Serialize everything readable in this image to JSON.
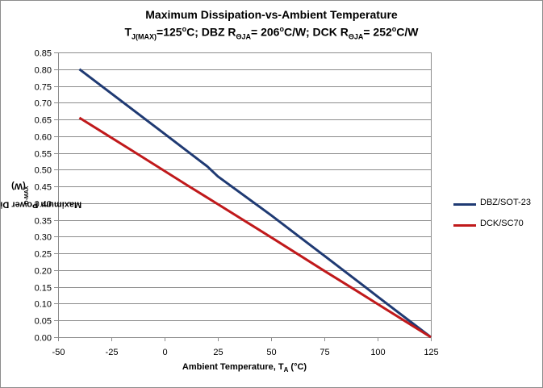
{
  "title_line1": "Maximum Dissipation-vs-Ambient Temperature",
  "title_line2": {
    "t_label": "T",
    "t_sub": "J(MAX)",
    "t_value": "=125",
    "deg1": "o",
    "part1": "C; DBZ R",
    "r_sub1": "ΘJA",
    "part2": "= 206",
    "deg2": "o",
    "part3": "C/W; DCK R",
    "r_sub2": "ΘJA",
    "part4": "= 252",
    "deg3": "o",
    "part5": "C/W"
  },
  "x_axis_label": {
    "main": "Ambient Temperature, T",
    "sub": "A",
    "unit": " (°C)"
  },
  "y_axis_label": {
    "main": "Maximum Power Disipation, P",
    "sub": "D-MAX",
    "unit": " (W)"
  },
  "colors": {
    "dbz": "#1f3a73",
    "dck": "#c0191b",
    "grid": "#8c8c8c",
    "axis": "#8c8c8c"
  },
  "chart_data": {
    "type": "line",
    "title": "Maximum Dissipation-vs-Ambient Temperature",
    "xlabel": "Ambient Temperature, TA (°C)",
    "ylabel": "Maximum Power Disipation, PD-MAX (W)",
    "xlim": [
      -50,
      125
    ],
    "ylim": [
      0,
      0.85
    ],
    "x_ticks": [
      "-50",
      "-25",
      "0",
      "25",
      "50",
      "75",
      "100",
      "125"
    ],
    "y_ticks": [
      "0.00",
      "0.05",
      "0.10",
      "0.15",
      "0.20",
      "0.25",
      "0.30",
      "0.35",
      "0.40",
      "0.45",
      "0.50",
      "0.55",
      "0.60",
      "0.65",
      "0.70",
      "0.75",
      "0.80",
      "0.85"
    ],
    "grid": "horizontal",
    "legend_position": "right",
    "series": [
      {
        "name": "DBZ/SOT-23",
        "color": "#1f3a73",
        "x": [
          -40,
          0,
          20,
          25,
          50,
          75,
          95,
          100,
          125
        ],
        "y": [
          0.8,
          0.607,
          0.51,
          0.48,
          0.364,
          0.243,
          0.146,
          0.121,
          0.0
        ]
      },
      {
        "name": "DCK/SC70",
        "color": "#c0191b",
        "x": [
          -40,
          -15,
          0,
          10,
          25,
          50,
          75,
          90,
          100,
          125
        ],
        "y": [
          0.655,
          0.556,
          0.496,
          0.456,
          0.397,
          0.298,
          0.198,
          0.139,
          0.099,
          0.0
        ]
      }
    ]
  }
}
